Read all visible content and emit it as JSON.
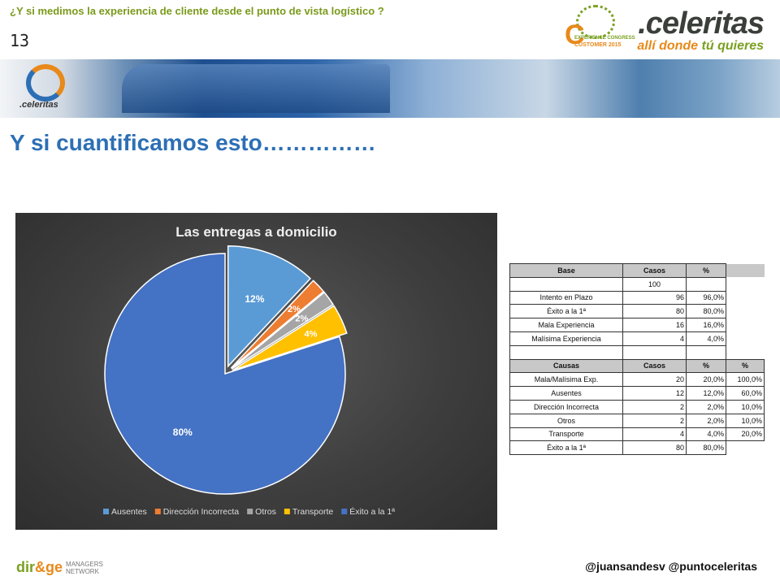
{
  "header": {
    "subtitle": "¿Y si medimos la experiencia de cliente desde el punto de vista logístico ?",
    "slide_number": "13",
    "brand_name": ".celeritas",
    "brand_tagline_part1": "allí donde ",
    "brand_tagline_part2": "tú quieres",
    "event_logo_line1": "EXPERIENCE CONGRESS",
    "event_logo_line2": "CUSTOMER 2015",
    "banner_brand": ".celeritas"
  },
  "title": "Y si cuantificamos esto……………",
  "chart_data": {
    "type": "pie",
    "title": "Las entregas a domicilio",
    "categories": [
      "Ausentes",
      "Dirección Incorrecta",
      "Otros",
      "Transporte",
      "Éxito a la 1ª"
    ],
    "values": [
      12,
      2,
      2,
      4,
      80
    ],
    "labels": [
      "12%",
      "2%",
      "2%",
      "4%",
      "80%"
    ],
    "colors": [
      "#5b9bd5",
      "#ed7d31",
      "#a5a5a5",
      "#ffc000",
      "#4472c4"
    ],
    "exploded": [
      true,
      true,
      true,
      true,
      false
    ],
    "legend_position": "bottom"
  },
  "table": {
    "header1": [
      "Base",
      "Casos",
      "%"
    ],
    "base_row": [
      "",
      "100",
      ""
    ],
    "rows1": [
      [
        "Intento en Plazo",
        "96",
        "96,0%"
      ],
      [
        "Éxito a la 1ª",
        "80",
        "80,0%"
      ],
      [
        "Mala Experiencia",
        "16",
        "16,0%"
      ],
      [
        "Malísima Experiencia",
        "4",
        "4,0%"
      ]
    ],
    "header2": [
      "Causas",
      "Casos",
      "%",
      "%"
    ],
    "rows2": [
      [
        "Mala/Malísima Exp.",
        "20",
        "20,0%",
        "100,0%"
      ],
      [
        "Ausentes",
        "12",
        "12,0%",
        "60,0%"
      ],
      [
        "Dirección Incorrecta",
        "2",
        "2,0%",
        "10,0%"
      ],
      [
        "Otros",
        "2",
        "2,0%",
        "10,0%"
      ],
      [
        "Transporte",
        "4",
        "4,0%",
        "20,0%"
      ],
      [
        "Éxito a la 1ª",
        "80",
        "80,0%",
        ""
      ]
    ]
  },
  "footer": {
    "logo_main1": "dir",
    "logo_amp": "&",
    "logo_main2": "ge",
    "logo_sub1": "MANAGERS",
    "logo_sub2": "NETWORK",
    "handles": "@juansandesv  @puntoceleritas"
  }
}
